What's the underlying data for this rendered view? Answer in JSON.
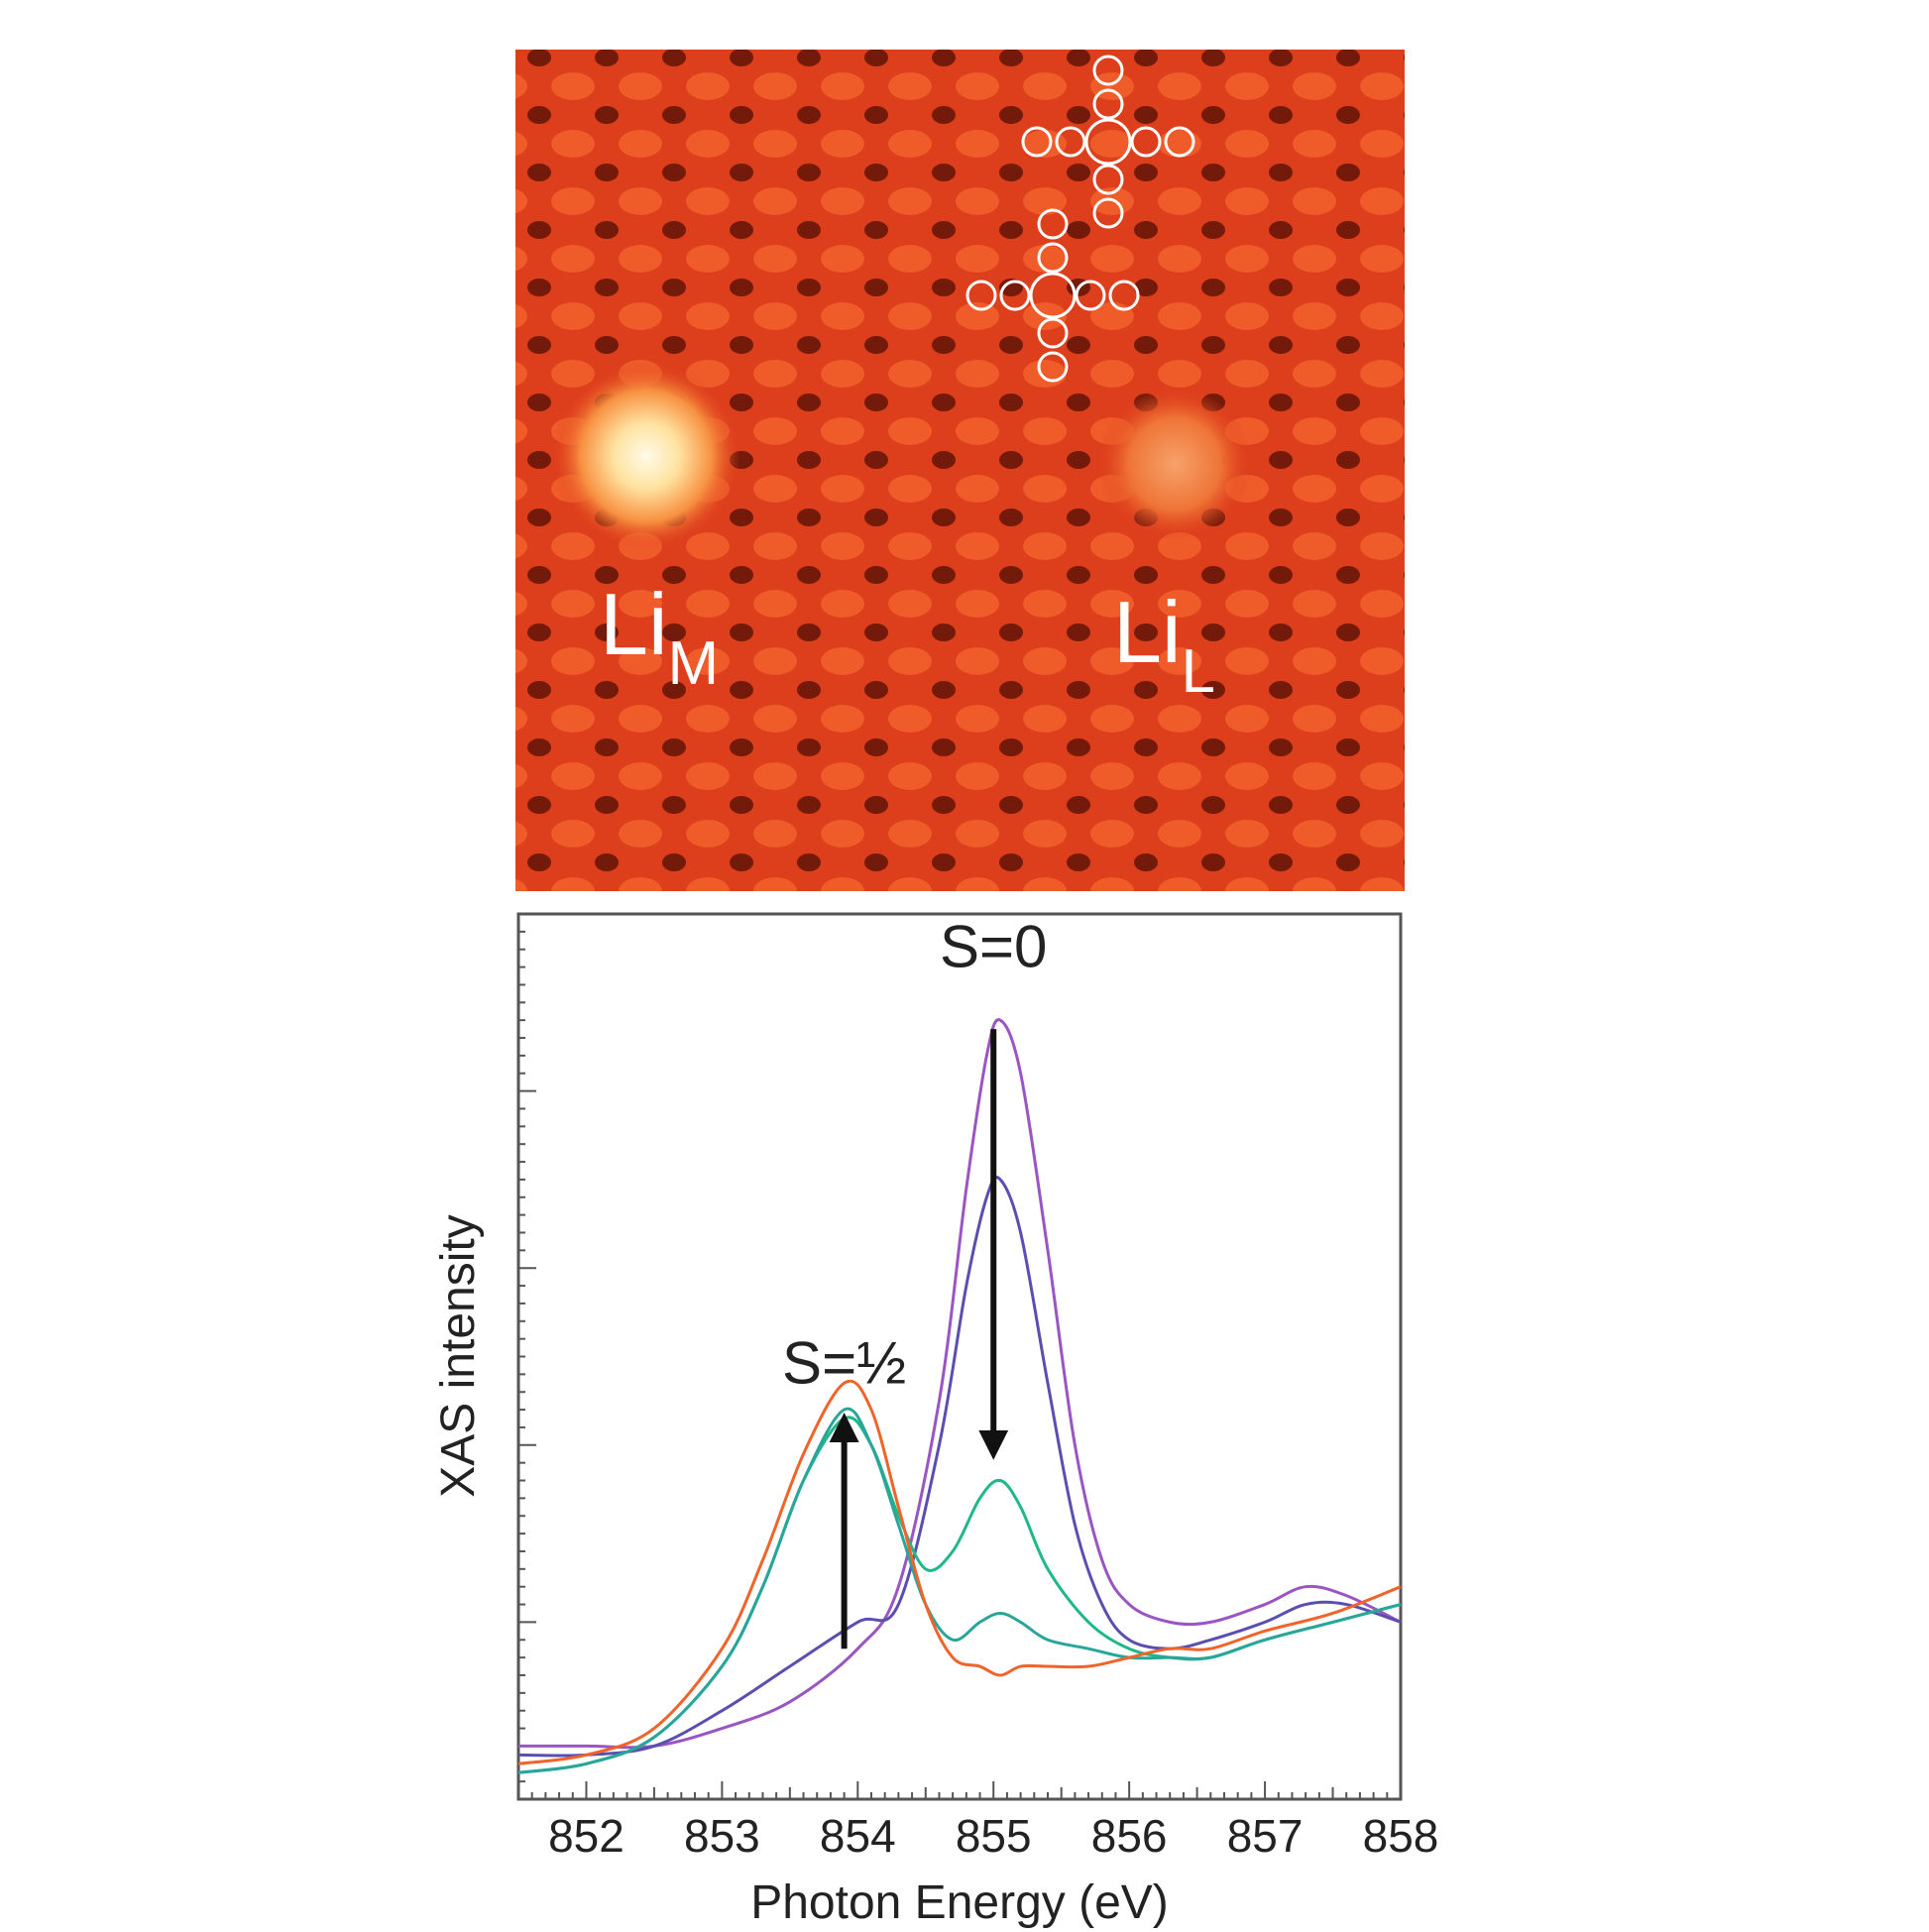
{
  "stm_image": {
    "labels": [
      {
        "main": "Li",
        "sub": "M"
      },
      {
        "main": "Li",
        "sub": "L"
      }
    ],
    "colors": {
      "background": "#e0401c",
      "bright": "#fff4d8",
      "dark": "#1a0500"
    }
  },
  "chart_data": {
    "type": "line",
    "xlabel": "Photon Energy (eV)",
    "ylabel": "XAS intensity",
    "xlim": [
      851.5,
      858
    ],
    "ylim": [
      0,
      1
    ],
    "xticks": [
      852,
      853,
      854,
      855,
      856,
      857,
      858
    ],
    "xtick_labels": [
      "852",
      "853",
      "854",
      "855",
      "856",
      "857",
      "858"
    ],
    "grid": false,
    "legend": "none",
    "annotations": [
      {
        "text": "S=0",
        "x": 855.0,
        "y": 0.94
      },
      {
        "text": "S=½",
        "x": 853.9,
        "y": 0.47
      }
    ],
    "arrows": [
      {
        "from": [
          855.0,
          0.87
        ],
        "to": [
          855.0,
          0.4
        ]
      },
      {
        "from": [
          853.9,
          0.17
        ],
        "to": [
          853.9,
          0.42
        ]
      }
    ],
    "series": [
      {
        "color": "#9a55c2",
        "x": [
          851.5,
          852.0,
          852.5,
          853.0,
          853.5,
          854.0,
          854.3,
          854.6,
          854.8,
          854.95,
          855.05,
          855.2,
          855.4,
          855.6,
          855.8,
          856.0,
          856.3,
          856.6,
          857.0,
          857.3,
          857.6,
          858.0
        ],
        "y": [
          0.06,
          0.06,
          0.06,
          0.08,
          0.11,
          0.17,
          0.24,
          0.45,
          0.69,
          0.84,
          0.88,
          0.82,
          0.62,
          0.4,
          0.27,
          0.22,
          0.2,
          0.2,
          0.22,
          0.24,
          0.23,
          0.2
        ]
      },
      {
        "color": "#5a4fb0",
        "x": [
          851.5,
          852.0,
          852.5,
          853.0,
          853.5,
          854.0,
          854.3,
          854.6,
          854.8,
          854.95,
          855.05,
          855.2,
          855.4,
          855.6,
          855.8,
          856.0,
          856.3,
          856.6,
          857.0,
          857.3,
          857.6,
          858.0
        ],
        "y": [
          0.05,
          0.05,
          0.06,
          0.1,
          0.15,
          0.2,
          0.22,
          0.4,
          0.58,
          0.68,
          0.7,
          0.64,
          0.47,
          0.31,
          0.22,
          0.18,
          0.17,
          0.18,
          0.2,
          0.22,
          0.22,
          0.2
        ]
      },
      {
        "color": "#1fb888",
        "x": [
          851.5,
          852.0,
          852.5,
          853.0,
          853.3,
          853.6,
          853.9,
          854.1,
          854.3,
          854.5,
          854.7,
          854.9,
          855.05,
          855.2,
          855.4,
          855.7,
          856.0,
          856.3,
          856.6,
          857.0,
          857.5,
          858.0
        ],
        "y": [
          0.03,
          0.04,
          0.07,
          0.15,
          0.24,
          0.36,
          0.43,
          0.4,
          0.32,
          0.26,
          0.28,
          0.34,
          0.36,
          0.33,
          0.26,
          0.2,
          0.17,
          0.16,
          0.16,
          0.18,
          0.2,
          0.22
        ]
      },
      {
        "color": "#2aa59a",
        "x": [
          851.5,
          852.0,
          852.5,
          853.0,
          853.3,
          853.6,
          853.9,
          854.1,
          854.3,
          854.5,
          854.7,
          854.9,
          855.05,
          855.2,
          855.4,
          855.7,
          856.0,
          856.3,
          856.6,
          857.0,
          857.5,
          858.0
        ],
        "y": [
          0.03,
          0.04,
          0.07,
          0.15,
          0.24,
          0.36,
          0.44,
          0.4,
          0.31,
          0.22,
          0.18,
          0.2,
          0.21,
          0.2,
          0.18,
          0.17,
          0.16,
          0.16,
          0.16,
          0.18,
          0.2,
          0.22
        ]
      },
      {
        "color": "#f0642a",
        "x": [
          851.5,
          852.0,
          852.5,
          853.0,
          853.3,
          853.6,
          853.9,
          854.1,
          854.3,
          854.5,
          854.7,
          854.9,
          855.05,
          855.2,
          855.4,
          855.7,
          856.0,
          856.3,
          856.6,
          857.0,
          857.5,
          858.0
        ],
        "y": [
          0.04,
          0.05,
          0.08,
          0.17,
          0.27,
          0.39,
          0.47,
          0.44,
          0.33,
          0.22,
          0.16,
          0.15,
          0.14,
          0.15,
          0.15,
          0.15,
          0.16,
          0.17,
          0.17,
          0.19,
          0.21,
          0.24
        ]
      }
    ]
  }
}
